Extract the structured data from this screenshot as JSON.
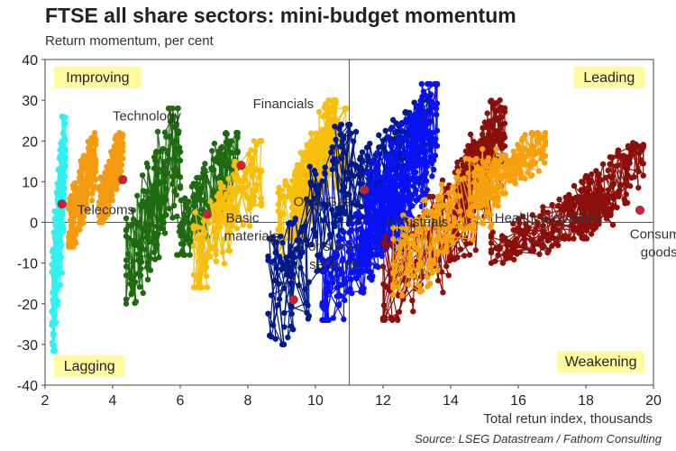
{
  "title": "FTSE all share sectors: mini-budget momentum",
  "subtitle": "Return momentum, per cent",
  "source": "Source: LSEG Datastream / Fathom Consulting",
  "chart_data": {
    "type": "scatter",
    "title": "FTSE all share sectors: mini-budget momentum",
    "ylabel": "Return momentum, per cent",
    "xlabel": "Total retun index, thousands",
    "xlim": [
      2,
      20
    ],
    "ylim": [
      -40,
      40
    ],
    "x_ticks": [
      "2",
      "4",
      "6",
      "8",
      "10",
      "12",
      "14",
      "16",
      "18",
      "20"
    ],
    "y_ticks": [
      "40",
      "30",
      "20",
      "10",
      "0",
      "-10",
      "-20",
      "-30",
      "-40"
    ],
    "divider_x": 11,
    "divider_y": 0,
    "quadrants": {
      "top_left": "Improving",
      "top_right": "Leading",
      "bottom_left": "Lagging",
      "bottom_right": "Weakening"
    },
    "series": [
      {
        "name": "Telecoms",
        "color": "#33f0f0",
        "clusters": [
          {
            "xr": [
              2.2,
              2.6
            ],
            "yr": [
              -32,
              26
            ]
          }
        ],
        "marker": [
          2.5,
          4.5
        ],
        "label_pos": [
          2.95,
          2
        ]
      },
      {
        "name": "Technology",
        "color": "#f39a10",
        "clusters": [
          {
            "xr": [
              2.7,
              3.5
            ],
            "yr": [
              -6,
              22
            ]
          },
          {
            "xr": [
              3.6,
              4.3
            ],
            "yr": [
              0,
              22
            ]
          }
        ],
        "marker": [
          4.3,
          10.5
        ],
        "label_pos": [
          4.0,
          25
        ]
      },
      {
        "name": "",
        "color": "#1e6b10",
        "clusters": [
          {
            "xr": [
              4.4,
              6.0
            ],
            "yr": [
              -20,
              28
            ]
          },
          {
            "xr": [
              5.9,
              7.7
            ],
            "yr": [
              -8,
              22
            ]
          }
        ],
        "marker": [
          6.8,
          2
        ],
        "label_pos": null
      },
      {
        "name": "Basic materials",
        "color": "#f7bf0c",
        "clusters": [
          {
            "xr": [
              6.4,
              8.4
            ],
            "yr": [
              -16,
              20
            ]
          },
          {
            "xr": [
              9.3,
              10.6
            ],
            "yr": [
              -4,
              30
            ]
          }
        ],
        "marker": [
          7.8,
          14
        ],
        "label_pos": [
          7.35,
          0
        ]
      },
      {
        "name": "Financials",
        "color": "#f7bf0c",
        "clusters": [
          {
            "xr": [
              8.9,
              10.9
            ],
            "yr": [
              -8,
              28
            ]
          }
        ],
        "marker": null,
        "label_pos": [
          8.15,
          28
        ]
      },
      {
        "name": "Oil & Gas",
        "color": "#001a8c",
        "clusters": [
          {
            "xr": [
              8.6,
              11.2
            ],
            "yr": [
              -30,
              24
            ]
          },
          {
            "xr": [
              11.0,
              13.4
            ],
            "yr": [
              0,
              30
            ]
          }
        ],
        "marker": null,
        "label_pos": [
          9.35,
          4
        ]
      },
      {
        "name": "Consumer services",
        "color": "#0a12f5",
        "clusters": [
          {
            "xr": [
              10.2,
              12.6
            ],
            "yr": [
              -24,
              10
            ]
          },
          {
            "xr": [
              11.5,
              13.6
            ],
            "yr": [
              -4,
              34
            ]
          }
        ],
        "marker": [
          9.35,
          -19
        ],
        "label_pos": [
          9.5,
          -7
        ]
      },
      {
        "name": "Industrials",
        "color": "#0a12f5",
        "clusters": [
          {
            "xr": [
              11.2,
              13.5
            ],
            "yr": [
              -12,
              22
            ]
          }
        ],
        "marker": [
          11.45,
          8
        ],
        "label_pos": [
          12.1,
          -1
        ]
      },
      {
        "name": "Healthcare",
        "color": "#8b0f0a",
        "clusters": [
          {
            "xr": [
              12.0,
              15.5
            ],
            "yr": [
              -24,
              20
            ]
          },
          {
            "xr": [
              14.2,
              15.6
            ],
            "yr": [
              2,
              30
            ]
          }
        ],
        "marker": null,
        "label_pos": [
          15.3,
          0
        ]
      },
      {
        "name": "Utilities",
        "color": "#f7a00d",
        "clusters": [
          {
            "xr": [
              12.3,
              15.4
            ],
            "yr": [
              -18,
              18
            ]
          },
          {
            "xr": [
              14.7,
              16.8
            ],
            "yr": [
              4,
              22
            ]
          }
        ],
        "marker": null,
        "label_pos": [
          17.2,
          0
        ]
      },
      {
        "name": "Consumer goods",
        "color": "#8b0f0a",
        "clusters": [
          {
            "xr": [
              15.2,
              18.8
            ],
            "yr": [
              -10,
              8
            ]
          },
          {
            "xr": [
              17.5,
              19.7
            ],
            "yr": [
              -4,
              20
            ]
          }
        ],
        "marker": [
          19.6,
          3
        ],
        "label_pos": [
          19.3,
          -4
        ]
      }
    ]
  }
}
